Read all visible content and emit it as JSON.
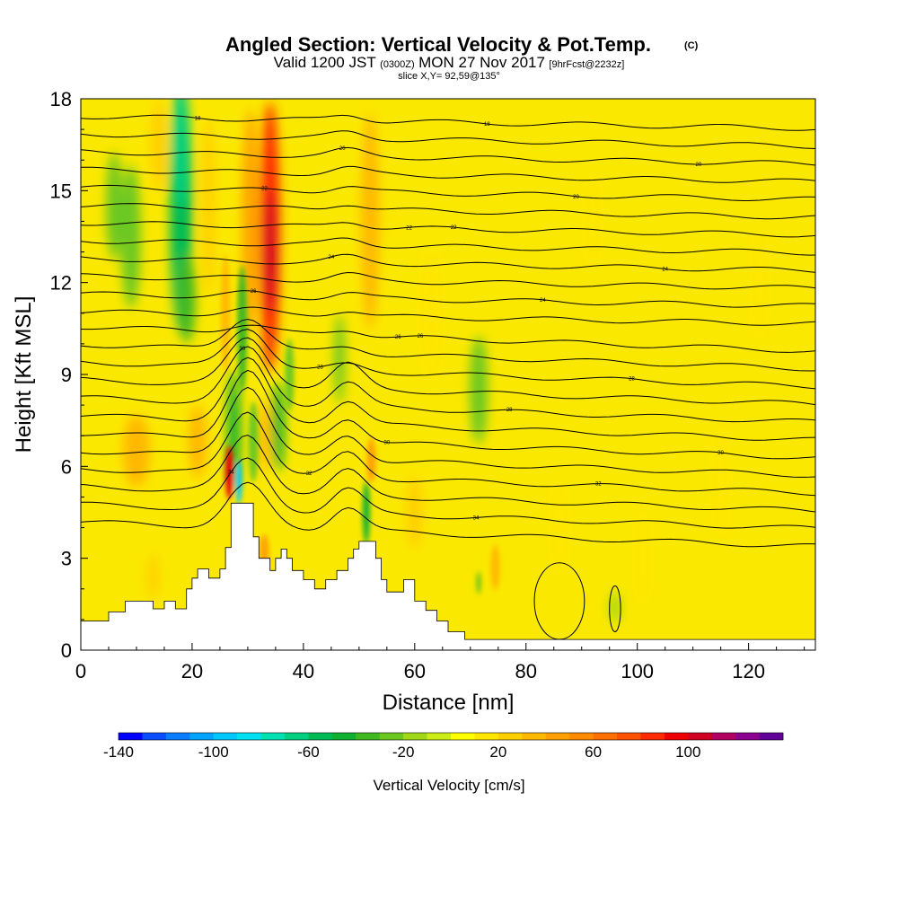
{
  "header": {
    "title": "Angled Section: Vertical Velocity & Pot.Temp.",
    "title_tag": "(C)",
    "valid_prefix": "Valid 1200 JST",
    "valid_z": "(0300Z)",
    "valid_date": "MON 27 Nov 2017",
    "valid_fcst": "[9hrFcst@2232z]",
    "slice": "slice X,Y= 92,59@135°"
  },
  "chart_data": {
    "type": "heatmap",
    "xlabel": "Distance [nm]",
    "ylabel": "Height [Kft MSL]",
    "xlim": [
      0,
      132
    ],
    "ylim": [
      0,
      18
    ],
    "xticks": [
      0,
      20,
      40,
      60,
      80,
      100,
      120
    ],
    "yticks": [
      0,
      3,
      6,
      9,
      12,
      15,
      18
    ],
    "grid": false,
    "terrain_kft": [
      [
        0,
        0.95
      ],
      [
        5,
        0.95
      ],
      [
        5,
        1.25
      ],
      [
        8,
        1.25
      ],
      [
        8,
        1.6
      ],
      [
        13,
        1.6
      ],
      [
        13,
        1.35
      ],
      [
        15,
        1.35
      ],
      [
        15,
        1.6
      ],
      [
        17,
        1.6
      ],
      [
        17,
        1.35
      ],
      [
        19,
        1.35
      ],
      [
        19,
        2.0
      ],
      [
        20,
        2.0
      ],
      [
        20,
        2.35
      ],
      [
        21,
        2.35
      ],
      [
        21,
        2.65
      ],
      [
        23,
        2.65
      ],
      [
        23,
        2.35
      ],
      [
        25,
        2.35
      ],
      [
        25,
        2.65
      ],
      [
        26,
        2.65
      ],
      [
        26,
        3.35
      ],
      [
        27,
        3.35
      ],
      [
        27,
        4.8
      ],
      [
        31,
        4.8
      ],
      [
        31,
        3.7
      ],
      [
        32,
        3.7
      ],
      [
        32,
        3.0
      ],
      [
        34,
        3.0
      ],
      [
        34,
        2.6
      ],
      [
        35,
        2.6
      ],
      [
        35,
        3.0
      ],
      [
        36,
        3.0
      ],
      [
        36,
        3.3
      ],
      [
        37,
        3.3
      ],
      [
        37,
        3.0
      ],
      [
        38,
        3.0
      ],
      [
        38,
        2.6
      ],
      [
        40,
        2.6
      ],
      [
        40,
        2.3
      ],
      [
        42,
        2.3
      ],
      [
        42,
        2.0
      ],
      [
        44,
        2.0
      ],
      [
        44,
        2.3
      ],
      [
        46,
        2.3
      ],
      [
        46,
        2.6
      ],
      [
        48,
        2.6
      ],
      [
        48,
        3.0
      ],
      [
        49,
        3.0
      ],
      [
        49,
        3.3
      ],
      [
        50,
        3.3
      ],
      [
        50,
        3.55
      ],
      [
        53,
        3.55
      ],
      [
        53,
        3.0
      ],
      [
        54,
        3.0
      ],
      [
        54,
        2.3
      ],
      [
        55,
        2.3
      ],
      [
        55,
        1.9
      ],
      [
        58,
        1.9
      ],
      [
        58,
        2.3
      ],
      [
        60,
        2.3
      ],
      [
        60,
        1.6
      ],
      [
        62,
        1.6
      ],
      [
        62,
        1.3
      ],
      [
        64,
        1.3
      ],
      [
        64,
        0.95
      ],
      [
        66,
        0.95
      ],
      [
        66,
        0.6
      ],
      [
        69,
        0.6
      ],
      [
        69,
        0.35
      ],
      [
        132,
        0.35
      ]
    ],
    "theta_contours_c": [
      10,
      12,
      14,
      16,
      18,
      20,
      22,
      24,
      26,
      28,
      30,
      32,
      34
    ],
    "vertical_velocity_cells": [
      {
        "x": 18,
        "y": 14.5,
        "w": 0.025,
        "h": 0.28,
        "v": -55
      },
      {
        "x": 18,
        "y": 16.5,
        "w": 0.02,
        "h": 0.14,
        "v": -70
      },
      {
        "x": 6,
        "y": 14.5,
        "w": 0.018,
        "h": 0.12,
        "v": -30
      },
      {
        "x": 9,
        "y": 13.5,
        "w": 0.022,
        "h": 0.16,
        "v": -30
      },
      {
        "x": 19,
        "y": 11.5,
        "w": 0.02,
        "h": 0.1,
        "v": -40
      },
      {
        "x": 34,
        "y": 13.5,
        "w": 0.022,
        "h": 0.3,
        "v": 85
      },
      {
        "x": 34,
        "y": 13.0,
        "w": 0.013,
        "h": 0.14,
        "v": 100
      },
      {
        "x": 30.5,
        "y": 14,
        "w": 0.018,
        "h": 0.25,
        "v": 45
      },
      {
        "x": 52,
        "y": 14,
        "w": 0.02,
        "h": 0.24,
        "v": 35
      },
      {
        "x": 23,
        "y": 14.5,
        "w": 0.014,
        "h": 0.2,
        "v": 25
      },
      {
        "x": 14,
        "y": 16.5,
        "w": 0.018,
        "h": 0.1,
        "v": 25
      },
      {
        "x": 26,
        "y": 11,
        "w": 0.01,
        "h": 0.13,
        "v": 35
      },
      {
        "x": 29,
        "y": 10.5,
        "w": 0.011,
        "h": 0.14,
        "v": -40
      },
      {
        "x": 27.5,
        "y": 7.2,
        "w": 0.014,
        "h": 0.13,
        "v": -45
      },
      {
        "x": 26.7,
        "y": 5.8,
        "w": 0.009,
        "h": 0.06,
        "v": 95
      },
      {
        "x": 28.4,
        "y": 5.5,
        "w": 0.007,
        "h": 0.05,
        "v": -100
      },
      {
        "x": 31,
        "y": 6.8,
        "w": 0.011,
        "h": 0.09,
        "v": -30
      },
      {
        "x": 35.5,
        "y": 7.3,
        "w": 0.013,
        "h": 0.1,
        "v": -50
      },
      {
        "x": 37.5,
        "y": 9.0,
        "w": 0.01,
        "h": 0.08,
        "v": -30
      },
      {
        "x": 33,
        "y": 7.0,
        "w": 0.012,
        "h": 0.08,
        "v": 30
      },
      {
        "x": 33,
        "y": 3.2,
        "w": 0.01,
        "h": 0.04,
        "v": 45
      },
      {
        "x": 46.5,
        "y": 9.5,
        "w": 0.012,
        "h": 0.1,
        "v": -25
      },
      {
        "x": 52.2,
        "y": 6.2,
        "w": 0.01,
        "h": 0.05,
        "v": 45
      },
      {
        "x": 51.3,
        "y": 4.5,
        "w": 0.008,
        "h": 0.07,
        "v": -45
      },
      {
        "x": 71.5,
        "y": 8.5,
        "w": 0.02,
        "h": 0.12,
        "v": -30
      },
      {
        "x": 10,
        "y": 6.5,
        "w": 0.03,
        "h": 0.08,
        "v": 35
      },
      {
        "x": 21,
        "y": 6.8,
        "w": 0.02,
        "h": 0.08,
        "v": 30
      },
      {
        "x": 60,
        "y": 4.5,
        "w": 0.018,
        "h": 0.08,
        "v": 25
      },
      {
        "x": 74.5,
        "y": 2.7,
        "w": 0.01,
        "h": 0.05,
        "v": 30
      },
      {
        "x": 71.5,
        "y": 2.2,
        "w": 0.004,
        "h": 0.025,
        "v": -35
      },
      {
        "x": 96,
        "y": 1.4,
        "w": 0.012,
        "h": 0.035,
        "v": -12
      },
      {
        "x": 13,
        "y": 2.4,
        "w": 0.012,
        "h": 0.05,
        "v": 25
      },
      {
        "x": 101,
        "y": 3.0,
        "w": 0.012,
        "h": 0.1,
        "v": 18
      },
      {
        "x": 115,
        "y": 5.5,
        "w": 0.012,
        "h": 0.12,
        "v": 18
      },
      {
        "x": 86,
        "y": 4.0,
        "w": 0.014,
        "h": 0.1,
        "v": 16
      },
      {
        "x": 122,
        "y": 12,
        "w": 0.012,
        "h": 0.12,
        "v": 16
      },
      {
        "x": 92,
        "y": 14,
        "w": 0.012,
        "h": 0.1,
        "v": 15
      },
      {
        "x": 63,
        "y": 11,
        "w": 0.02,
        "h": 0.14,
        "v": 18
      }
    ]
  },
  "colorbar": {
    "label": "Vertical Velocity [cm/s]",
    "min": -140,
    "max": 140,
    "step": 10,
    "tick_labels": [
      "-140",
      "-100",
      "-60",
      "-20",
      "20",
      "60",
      "100"
    ],
    "tick_values": [
      -140,
      -100,
      -60,
      -20,
      20,
      60,
      100
    ],
    "colors": [
      "#0000ff",
      "#0a4dff",
      "#0a7cff",
      "#00a4ff",
      "#00c8ff",
      "#00e0f0",
      "#00e0b0",
      "#00cf80",
      "#00bb55",
      "#10b030",
      "#40b820",
      "#6cc820",
      "#a0d818",
      "#ccec18",
      "#ffff00",
      "#ffe600",
      "#ffcf00",
      "#ffb800",
      "#ffa000",
      "#ff8a00",
      "#ff6e00",
      "#ff5000",
      "#ff2a00",
      "#ee0000",
      "#d00020",
      "#b00060",
      "#8c0090",
      "#600099"
    ]
  },
  "contour_labels": [
    "34",
    "34",
    "32",
    "32",
    "30",
    "30",
    "30",
    "28",
    "28",
    "28",
    "26",
    "26",
    "26",
    "24",
    "24",
    "24",
    "22",
    "22",
    "22",
    "20",
    "20",
    "20",
    "18",
    "18",
    "18",
    "16",
    "16",
    "14",
    "14",
    "12",
    "12",
    "10",
    "10"
  ]
}
